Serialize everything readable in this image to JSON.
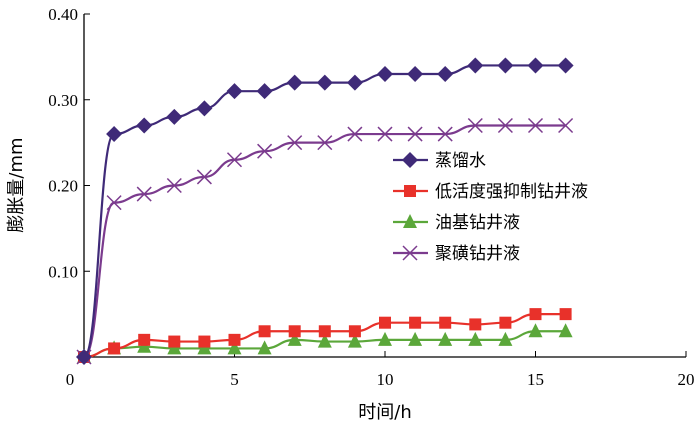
{
  "chart_data": {
    "type": "line",
    "xlabel": "时间/h",
    "ylabel": "膨胀量/mm",
    "xlim": [
      0,
      20
    ],
    "ylim": [
      0,
      0.4
    ],
    "xticks": [
      "0",
      "5",
      "10",
      "15",
      "20"
    ],
    "yticks": [
      "0.10",
      "0.20",
      "0.30",
      "0.40"
    ],
    "grid": false,
    "legend_position": "center-right",
    "x": [
      0,
      1,
      2,
      3,
      4,
      5,
      6,
      7,
      8,
      9,
      10,
      11,
      12,
      13,
      14,
      15,
      16
    ],
    "series": [
      {
        "name": "蒸馏水",
        "color": "#3f2a78",
        "marker": "diamond",
        "values": [
          0,
          0.26,
          0.27,
          0.28,
          0.29,
          0.31,
          0.31,
          0.32,
          0.32,
          0.32,
          0.33,
          0.33,
          0.33,
          0.34,
          0.34,
          0.34,
          0.34
        ]
      },
      {
        "name": "低活度强抑制钻井液",
        "color": "#e8312a",
        "marker": "square",
        "values": [
          0,
          0.01,
          0.02,
          0.018,
          0.018,
          0.02,
          0.03,
          0.03,
          0.03,
          0.03,
          0.04,
          0.04,
          0.04,
          0.038,
          0.04,
          0.05,
          0.05
        ]
      },
      {
        "name": "油基钻井液",
        "color": "#5ba73a",
        "marker": "triangle",
        "values": [
          0,
          0.01,
          0.012,
          0.01,
          0.01,
          0.01,
          0.01,
          0.02,
          0.018,
          0.018,
          0.02,
          0.02,
          0.02,
          0.02,
          0.02,
          0.03,
          0.03
        ]
      },
      {
        "name": "聚磺钻井液",
        "color": "#7b3b8e",
        "marker": "cross",
        "values": [
          0,
          0.18,
          0.19,
          0.2,
          0.21,
          0.23,
          0.24,
          0.25,
          0.25,
          0.26,
          0.26,
          0.26,
          0.26,
          0.27,
          0.27,
          0.27,
          0.27
        ]
      }
    ]
  }
}
